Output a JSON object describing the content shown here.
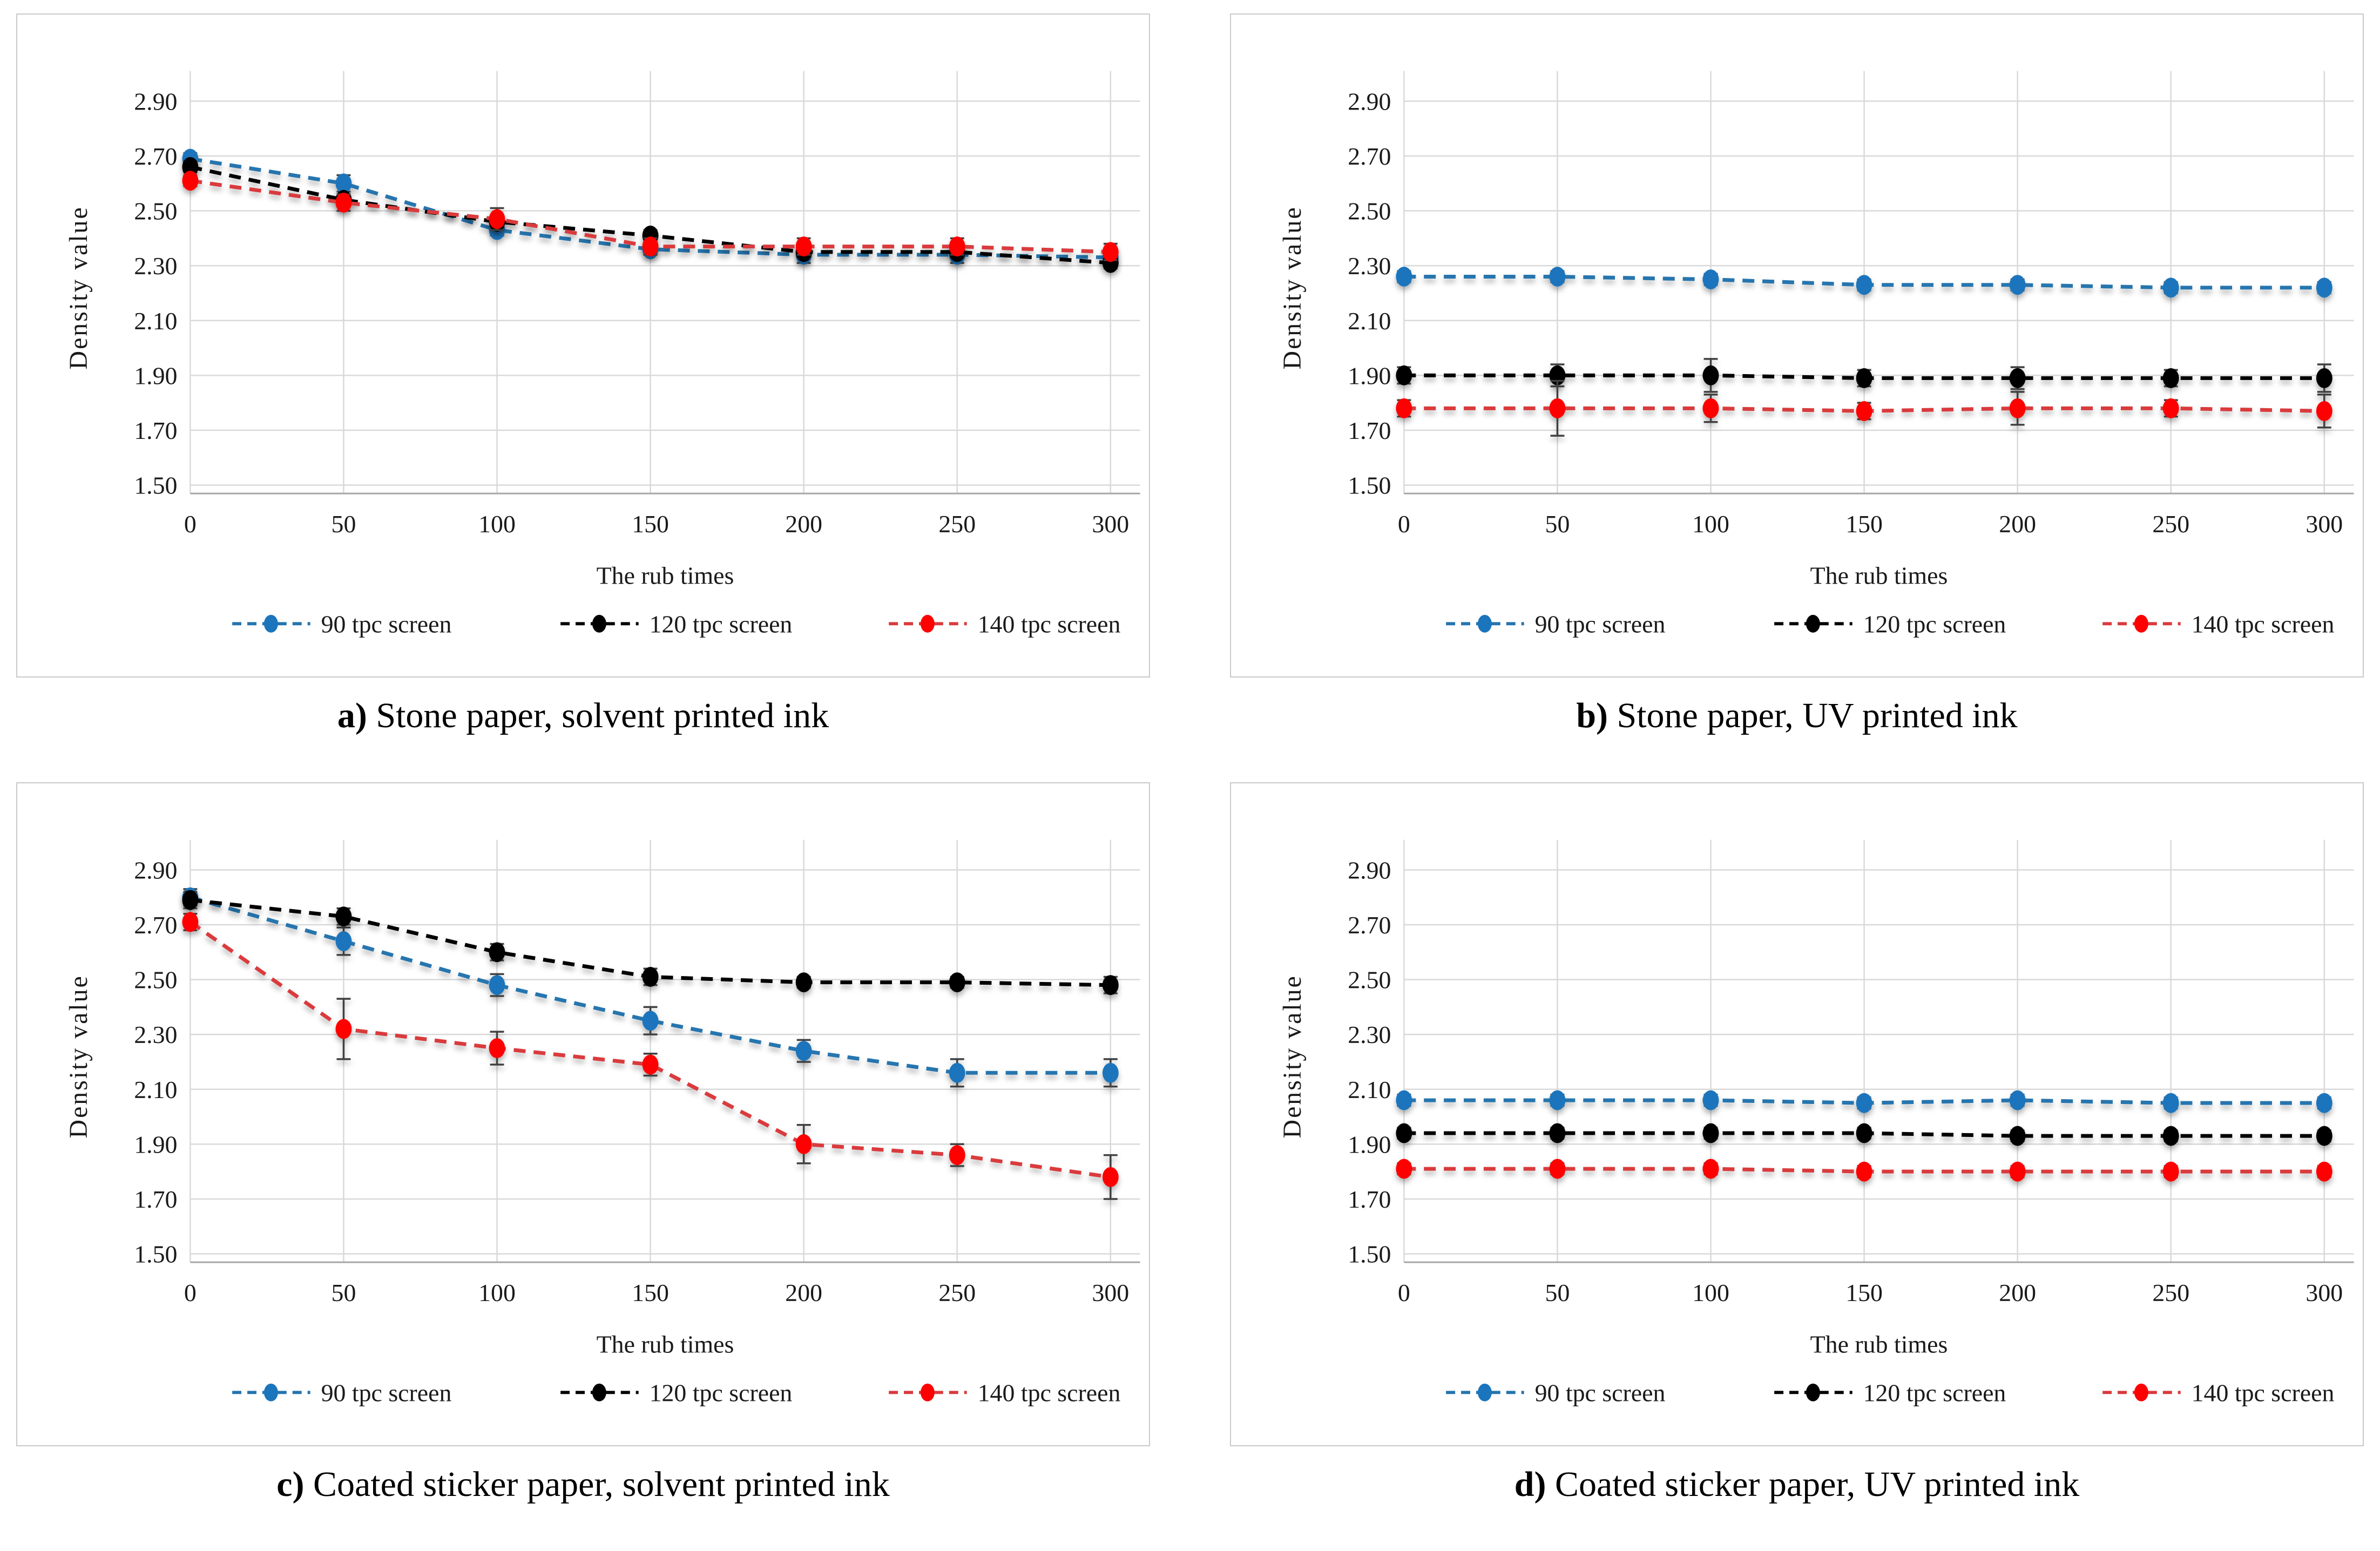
{
  "figure": {
    "xlabel": "The rub times",
    "ylabel": "Density value",
    "xtick_labels": [
      "0",
      "50",
      "100",
      "150",
      "200",
      "250",
      "300"
    ],
    "ytick_labels": [
      "1.50",
      "1.70",
      "1.90",
      "2.10",
      "2.30",
      "2.50",
      "2.70",
      "2.90"
    ],
    "legend_labels": [
      "90 tpc screen",
      "120 tpc screen",
      "140 tpc screen"
    ],
    "colors": {
      "blue_marker": "#1B75BC",
      "blue_line": "#2574AE",
      "black_marker": "#000000",
      "black_line": "#000000",
      "red_marker": "#FE0000",
      "red_line": "#D93A3E",
      "grid": "#D9D9D9",
      "axis_line": "#A6A6A6",
      "error_bar": "#404040",
      "text": "#1A1A1A",
      "panel_border": "#C9C9C9"
    }
  },
  "chart_data": [
    {
      "id": "a",
      "type": "line",
      "caption_label": "a)",
      "caption_text": "Stone paper, solvent printed ink",
      "title": "",
      "xlabel": "The rub times",
      "ylabel": "Density value",
      "x": [
        0,
        50,
        100,
        150,
        200,
        250,
        300
      ],
      "ylim": [
        1.5,
        2.9
      ],
      "grid": true,
      "legend_position": "bottom",
      "series": [
        {
          "name": "90 tpc screen",
          "marker_color": "#1B75BC",
          "line_color": "#2574AE",
          "values": [
            2.69,
            2.6,
            2.43,
            2.36,
            2.34,
            2.34,
            2.33
          ],
          "errors": [
            0.02,
            0.03,
            0.02,
            0.02,
            0.03,
            0.03,
            0.03
          ]
        },
        {
          "name": "120 tpc screen",
          "marker_color": "#000000",
          "line_color": "#000000",
          "values": [
            2.66,
            2.54,
            2.46,
            2.41,
            2.35,
            2.35,
            2.31
          ],
          "errors": [
            0.02,
            0.02,
            0.02,
            0.02,
            0.02,
            0.02,
            0.02
          ]
        },
        {
          "name": "140 tpc screen",
          "marker_color": "#FE0000",
          "line_color": "#D93A3E",
          "values": [
            2.61,
            2.53,
            2.47,
            2.37,
            2.37,
            2.37,
            2.35
          ],
          "errors": [
            0.02,
            0.03,
            0.04,
            0.03,
            0.03,
            0.03,
            0.03
          ]
        }
      ]
    },
    {
      "id": "b",
      "type": "line",
      "caption_label": "b)",
      "caption_text": "Stone paper, UV printed ink",
      "title": "",
      "xlabel": "The rub times",
      "ylabel": "Density value",
      "x": [
        0,
        50,
        100,
        150,
        200,
        250,
        300
      ],
      "ylim": [
        1.5,
        2.9
      ],
      "grid": true,
      "legend_position": "bottom",
      "series": [
        {
          "name": "90 tpc screen",
          "marker_color": "#1B75BC",
          "line_color": "#2574AE",
          "values": [
            2.26,
            2.26,
            2.25,
            2.23,
            2.23,
            2.22,
            2.22
          ],
          "errors": [
            0.02,
            0.02,
            0.02,
            0.02,
            0.02,
            0.02,
            0.02
          ]
        },
        {
          "name": "120 tpc screen",
          "marker_color": "#000000",
          "line_color": "#000000",
          "values": [
            1.9,
            1.9,
            1.9,
            1.89,
            1.89,
            1.89,
            1.89
          ],
          "errors": [
            0.03,
            0.04,
            0.06,
            0.03,
            0.04,
            0.03,
            0.05
          ]
        },
        {
          "name": "140 tpc screen",
          "marker_color": "#FE0000",
          "line_color": "#D93A3E",
          "values": [
            1.78,
            1.78,
            1.78,
            1.77,
            1.78,
            1.78,
            1.77
          ],
          "errors": [
            0.03,
            0.1,
            0.05,
            0.03,
            0.06,
            0.03,
            0.06
          ]
        }
      ]
    },
    {
      "id": "c",
      "type": "line",
      "caption_label": "c)",
      "caption_text": "Coated sticker paper, solvent printed ink",
      "title": "",
      "xlabel": "The rub times",
      "ylabel": "Density value",
      "x": [
        0,
        50,
        100,
        150,
        200,
        250,
        300
      ],
      "ylim": [
        1.5,
        2.9
      ],
      "grid": true,
      "legend_position": "bottom",
      "series": [
        {
          "name": "90 tpc screen",
          "marker_color": "#1B75BC",
          "line_color": "#2574AE",
          "values": [
            2.8,
            2.64,
            2.48,
            2.35,
            2.24,
            2.16,
            2.16
          ],
          "errors": [
            0.03,
            0.05,
            0.04,
            0.05,
            0.04,
            0.05,
            0.05
          ]
        },
        {
          "name": "120 tpc screen",
          "marker_color": "#000000",
          "line_color": "#000000",
          "values": [
            2.79,
            2.73,
            2.6,
            2.51,
            2.49,
            2.49,
            2.48
          ],
          "errors": [
            0.03,
            0.03,
            0.03,
            0.03,
            0.02,
            0.02,
            0.03
          ]
        },
        {
          "name": "140 tpc screen",
          "marker_color": "#FE0000",
          "line_color": "#D93A3E",
          "values": [
            2.71,
            2.32,
            2.25,
            2.19,
            1.9,
            1.86,
            1.78
          ],
          "errors": [
            0.03,
            0.11,
            0.06,
            0.04,
            0.07,
            0.04,
            0.08
          ]
        }
      ]
    },
    {
      "id": "d",
      "type": "line",
      "caption_label": "d)",
      "caption_text": "Coated sticker paper, UV printed ink",
      "title": "",
      "xlabel": "The rub times",
      "ylabel": "Density value",
      "x": [
        0,
        50,
        100,
        150,
        200,
        250,
        300
      ],
      "ylim": [
        1.5,
        2.9
      ],
      "grid": true,
      "legend_position": "bottom",
      "series": [
        {
          "name": "90 tpc screen",
          "marker_color": "#1B75BC",
          "line_color": "#2574AE",
          "values": [
            2.06,
            2.06,
            2.06,
            2.05,
            2.06,
            2.05,
            2.05
          ],
          "errors": [
            0.02,
            0.02,
            0.02,
            0.02,
            0.02,
            0.02,
            0.02
          ]
        },
        {
          "name": "120 tpc screen",
          "marker_color": "#000000",
          "line_color": "#000000",
          "values": [
            1.94,
            1.94,
            1.94,
            1.94,
            1.93,
            1.93,
            1.93
          ],
          "errors": [
            0.02,
            0.02,
            0.02,
            0.02,
            0.02,
            0.02,
            0.02
          ]
        },
        {
          "name": "140 tpc screen",
          "marker_color": "#FE0000",
          "line_color": "#D93A3E",
          "values": [
            1.81,
            1.81,
            1.81,
            1.8,
            1.8,
            1.8,
            1.8
          ],
          "errors": [
            0.02,
            0.02,
            0.02,
            0.02,
            0.02,
            0.02,
            0.02
          ]
        }
      ]
    }
  ]
}
